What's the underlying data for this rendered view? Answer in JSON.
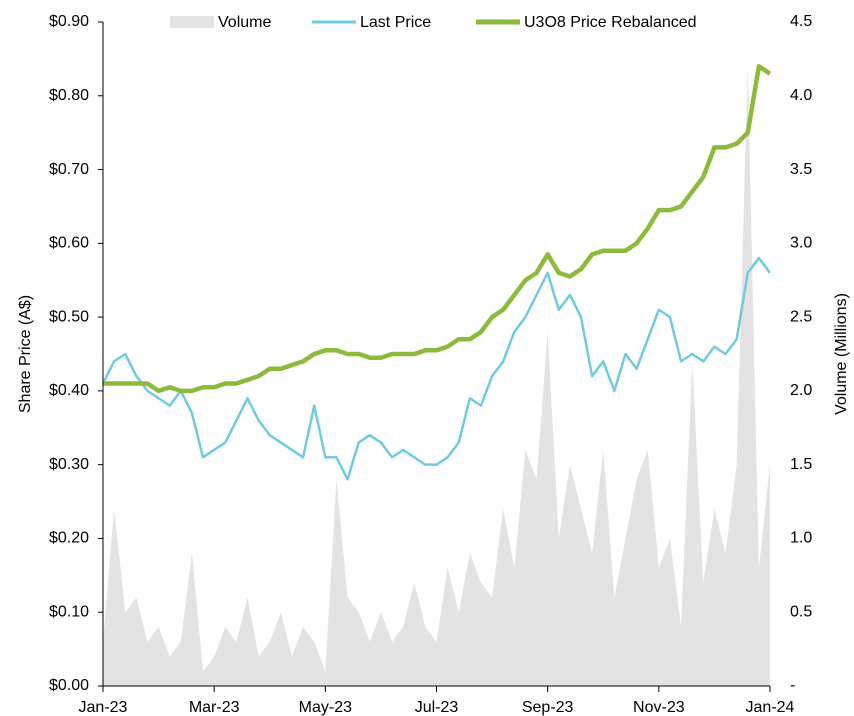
{
  "chart_data": {
    "type": "line",
    "y_label": "Share Price (A$)",
    "y2_label": "Volume (Millions)",
    "categories": [
      "Jan-23",
      null,
      null,
      null,
      null,
      null,
      null,
      null,
      null,
      null,
      "Mar-23",
      null,
      null,
      null,
      null,
      null,
      null,
      null,
      null,
      null,
      "May-23",
      null,
      null,
      null,
      null,
      null,
      null,
      null,
      null,
      null,
      "Jul-23",
      null,
      null,
      null,
      null,
      null,
      null,
      null,
      null,
      null,
      "Sep-23",
      null,
      null,
      null,
      null,
      null,
      null,
      null,
      null,
      null,
      "Nov-23",
      null,
      null,
      null,
      null,
      null,
      null,
      null,
      null,
      null,
      "Jan-24"
    ],
    "series": [
      {
        "name": "Volume",
        "kind": "area",
        "axis": "y2",
        "color": "#e3e3e3",
        "values": [
          0.3,
          1.2,
          0.5,
          0.6,
          0.3,
          0.4,
          0.2,
          0.3,
          0.9,
          0.1,
          0.2,
          0.4,
          0.3,
          0.6,
          0.2,
          0.3,
          0.5,
          0.2,
          0.4,
          0.3,
          0.1,
          1.4,
          0.6,
          0.5,
          0.3,
          0.5,
          0.3,
          0.4,
          0.7,
          0.4,
          0.3,
          0.8,
          0.5,
          0.9,
          0.7,
          0.6,
          1.2,
          0.8,
          1.6,
          1.4,
          2.4,
          1.0,
          1.5,
          1.2,
          0.9,
          1.6,
          0.6,
          1.0,
          1.4,
          1.6,
          0.8,
          1.0,
          0.4,
          2.2,
          0.7,
          1.2,
          0.9,
          1.5,
          4.2,
          0.8,
          1.5
        ]
      },
      {
        "name": "Last Price",
        "kind": "line",
        "color": "#6fcbe0",
        "values": [
          0.41,
          0.44,
          0.45,
          0.42,
          0.4,
          0.39,
          0.38,
          0.4,
          0.37,
          0.31,
          0.32,
          0.33,
          0.36,
          0.39,
          0.36,
          0.34,
          0.33,
          0.32,
          0.31,
          0.38,
          0.31,
          0.31,
          0.28,
          0.33,
          0.34,
          0.33,
          0.31,
          0.32,
          0.31,
          0.3,
          0.3,
          0.31,
          0.33,
          0.39,
          0.38,
          0.42,
          0.44,
          0.48,
          0.5,
          0.53,
          0.56,
          0.51,
          0.53,
          0.5,
          0.42,
          0.44,
          0.4,
          0.45,
          0.43,
          0.47,
          0.51,
          0.5,
          0.44,
          0.45,
          0.44,
          0.46,
          0.45,
          0.47,
          0.56,
          0.58,
          0.56
        ]
      },
      {
        "name": "U3O8 Price Rebalanced",
        "kind": "line",
        "color": "#8cba3b",
        "values": [
          0.41,
          0.41,
          0.41,
          0.41,
          0.41,
          0.4,
          0.405,
          0.4,
          0.4,
          0.405,
          0.405,
          0.41,
          0.41,
          0.415,
          0.42,
          0.43,
          0.43,
          0.435,
          0.44,
          0.45,
          0.455,
          0.455,
          0.45,
          0.45,
          0.445,
          0.445,
          0.45,
          0.45,
          0.45,
          0.455,
          0.455,
          0.46,
          0.47,
          0.47,
          0.48,
          0.5,
          0.51,
          0.53,
          0.55,
          0.56,
          0.585,
          0.56,
          0.555,
          0.565,
          0.585,
          0.59,
          0.59,
          0.59,
          0.6,
          0.62,
          0.645,
          0.645,
          0.65,
          0.67,
          0.69,
          0.73,
          0.73,
          0.735,
          0.75,
          0.84,
          0.83
        ]
      }
    ],
    "ylim": [
      0,
      0.9
    ],
    "yticks": [
      {
        "value": 0,
        "label": "$0.00"
      },
      {
        "value": 0.1,
        "label": "$0.10"
      },
      {
        "value": 0.2,
        "label": "$0.20"
      },
      {
        "value": 0.3,
        "label": "$0.30"
      },
      {
        "value": 0.4,
        "label": "$0.40"
      },
      {
        "value": 0.5,
        "label": "$0.50"
      },
      {
        "value": 0.6,
        "label": "$0.60"
      },
      {
        "value": 0.7,
        "label": "$0.70"
      },
      {
        "value": 0.8,
        "label": "$0.80"
      },
      {
        "value": 0.9,
        "label": "$0.90"
      }
    ],
    "y2lim": [
      0,
      4.5
    ],
    "y2ticks": [
      {
        "value": 0,
        "label": "-"
      },
      0.5,
      {
        "value": 1,
        "label": "1.0"
      },
      1.5,
      {
        "value": 2,
        "label": "2.0"
      },
      2.5,
      {
        "value": 3,
        "label": "3.0"
      },
      3.5,
      {
        "value": 4,
        "label": "4.0"
      },
      4.5
    ],
    "grid": false,
    "legend": "top"
  }
}
